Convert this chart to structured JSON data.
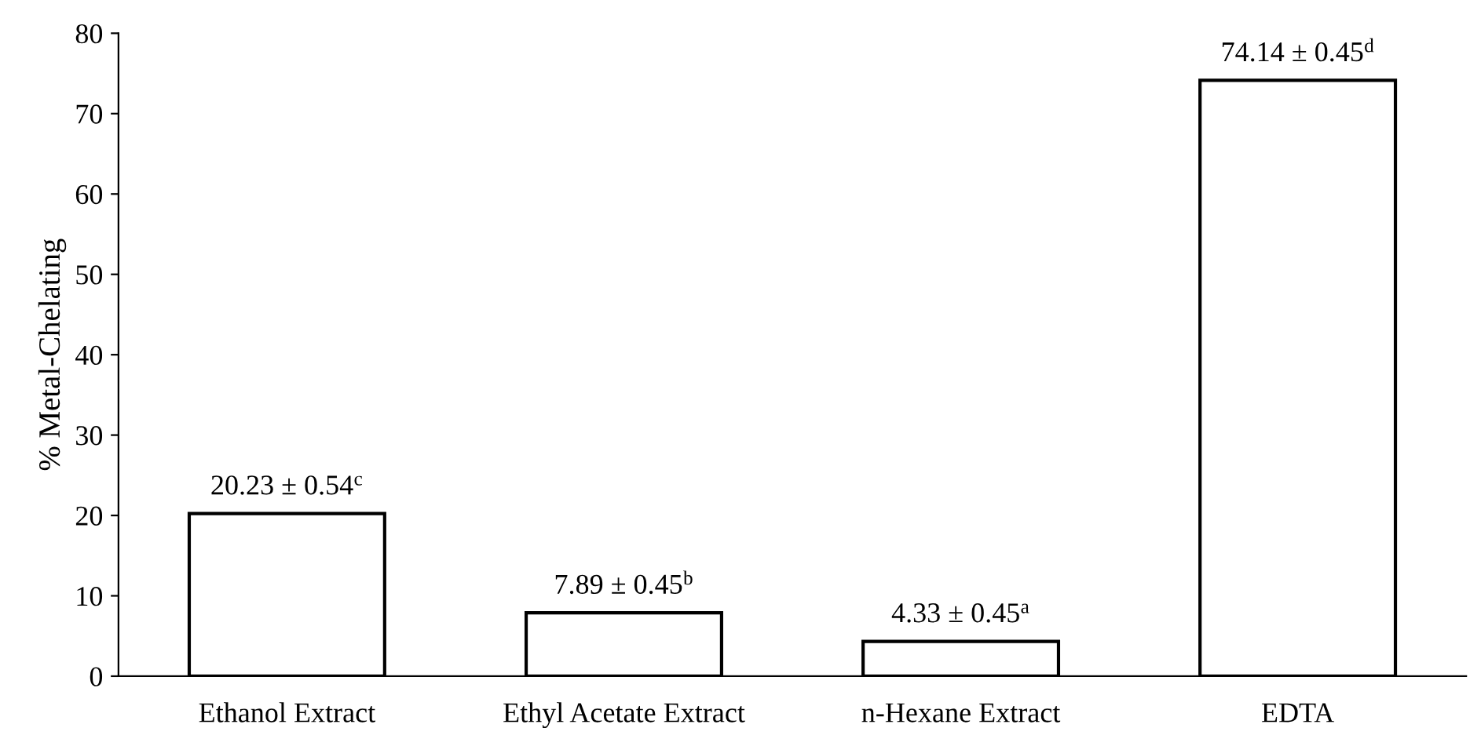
{
  "chart_data": {
    "type": "bar",
    "ylabel": "% Metal-Chelating",
    "categories": [
      "Ethanol Extract",
      "Ethyl Acetate Extract",
      "n-Hexane Extract",
      "EDTA"
    ],
    "values": [
      20.23,
      7.89,
      4.33,
      74.14
    ],
    "value_labels": [
      "20.23 ± 0.54$^{c}$",
      "7.89 ± 0.45$^{b}$",
      "4.33 ± 0.45$^{a}$",
      "74.14 ± 0.45$^{d}$"
    ],
    "color": "#ffffff",
    "ylim": [
      0,
      80
    ],
    "yticks": [
      0,
      10,
      20,
      30,
      40,
      50,
      60,
      70,
      80
    ],
    "grid": false,
    "legend": false
  }
}
